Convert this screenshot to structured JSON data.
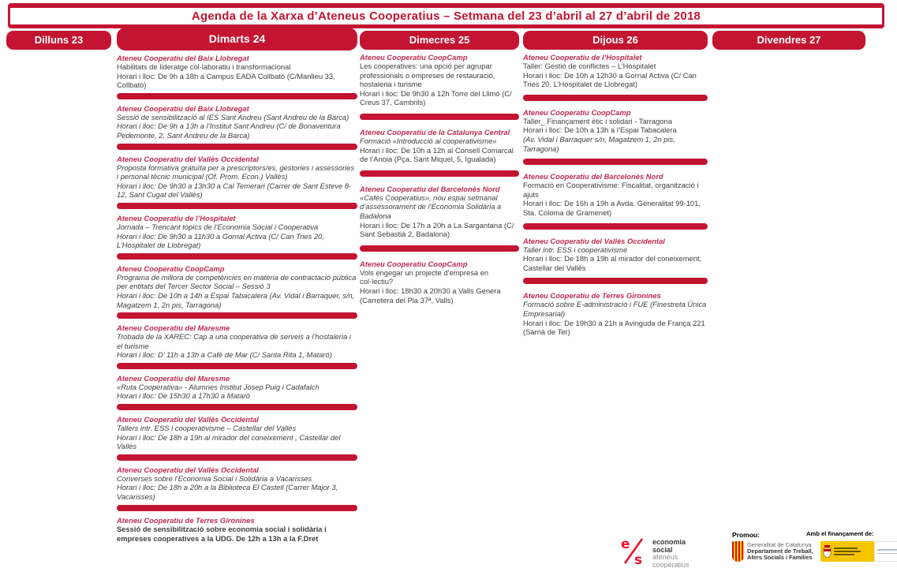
{
  "title": "Agenda de la Xarxa d’Ateneus Cooperatius – Setmana del 23 d’abril al 27 d’abril de 2018",
  "colors": {
    "accent": "#C31432",
    "organizer": "#BE2C55",
    "body_text": "#3E3E3E",
    "spain_yellow": "#F6C500"
  },
  "days": [
    {
      "label": "Dilluns 23",
      "events": []
    },
    {
      "label": "Dimarts  24",
      "events": [
        {
          "org": "Ateneu Cooperatiu del Baix Llobregat",
          "lines": [
            {
              "text": "Habilitats de lideratge col·laboratiu i transformacional",
              "style": "regular"
            },
            {
              "text": "Horari i lloc: De 9h a 18h a Campus EADA Collbató (C/Manlleu 33, Collbató)",
              "style": "regular"
            }
          ]
        },
        {
          "org": "Ateneu Cooperatiu del Baix Llobregat",
          "lines": [
            {
              "text": "Sessió de sensibilització al IES Sant Andreu (Sant Andreu de la Barca)",
              "style": "italic"
            },
            {
              "text": "Horari i lloc: De 9h a 13h a l’Institut Sant Andreu (C/ de Bonaventura Pedemonte, 2, Sant Andreu de la Barca)",
              "style": "italic"
            }
          ]
        },
        {
          "org": "Ateneu Cooperatiu del Vallès Occidental",
          "lines": [
            {
              "text": "Proposta formativa gratuïta per a prescriptors/es, gestories i assessories i personal tècnic municipal (Of. Prom. Econ.) Vallès)",
              "style": "italic"
            },
            {
              "text": "Horari i lloc: De 9h30 a 13h30 a Cal Temerari (Carrer de Sant Esteve 8-12, Sant Cugat del Vallès)",
              "style": "italic"
            }
          ]
        },
        {
          "org": "Ateneu Cooperatiu de l’Hospitalet",
          "lines": [
            {
              "text": "Jornada – Trencant tòpics de l’Economia Social i Cooperativa",
              "style": "italic"
            },
            {
              "text": "Horari i lloc: De 9h30 a 11h30 a Gornal Activa (C/ Can Tries 20, L’Hospitalet de Llobregat)",
              "style": "italic"
            }
          ]
        },
        {
          "org": "Ateneu Cooperatiu CoopCamp",
          "lines": [
            {
              "text": "Programa de millora de competències en matèria de contractació pública per entitats del Tercer Sector Social – Sessió 3",
              "style": "italic"
            },
            {
              "text": "Horari i lloc: De 10h a 14h a Espai Tabacalera (Av. Vidal i Barraquer, s/n, Magatzem  1, 2n pis, Tarragona)",
              "style": "italic"
            }
          ]
        },
        {
          "org": "Ateneu Cooperatiu del Maresme",
          "lines": [
            {
              "text": "Trobada de la XAREC: Cap a una cooperativa de serveis a l’hostaleria i el turisme",
              "style": "italic"
            },
            {
              "text": "Horari i lloc: D’ 11h a 13h a Cafè de Mar (C/ Santa Rita 1, Mataró)",
              "style": "italic"
            }
          ]
        },
        {
          "org": "Ateneu Cooperatiu del Maresme",
          "lines": [
            {
              "text": "«Ruta Cooperativa» - Alumnes Institut Josep Puig i Cadafalch",
              "style": "italic"
            },
            {
              "text": "Horari i lloc: De 15h30 a 17h30 a Mataró",
              "style": "italic"
            }
          ]
        },
        {
          "org": "Ateneu Cooperatiu del Vallès Occidental",
          "lines": [
            {
              "text": "Tallers intr. ESS i cooperativisme – Castellar del Vallès",
              "style": "italic"
            },
            {
              "text": "Horari i lloc: De 18h a 19h al mirador del coneixement , Castellar del Vallès",
              "style": "italic"
            }
          ]
        },
        {
          "org": "Ateneu Cooperatiu del Vallès Occidental",
          "lines": [
            {
              "text": "Converses sobre l’Economia Social i Solidària a Vacarisses",
              "style": "italic"
            },
            {
              "text": "Horari i lloc: De 18h a 20h a la Biblioteca El Castell (Carrer Major 3, Vacarisses)",
              "style": "italic"
            }
          ]
        },
        {
          "org": "Ateneu Cooperatiu de Terres Gironines",
          "lines": [
            {
              "text": "Sessió de sensibilització sobre economia social i solidària i empreses cooperatives a la UDG. De 12h a 13h a la F.Dret",
              "style": "bold"
            }
          ]
        }
      ]
    },
    {
      "label": "Dimecres 25",
      "events": [
        {
          "org": "Ateneu Cooperatiu CoopCamp",
          "lines": [
            {
              "text": "Les cooperatives: una opció per agrupar professionals o empreses de restauració, hostaleria i turisme",
              "style": "regular"
            },
            {
              "text": "Horari i lloc: De 9h30 a 12h Torre del Llimó (C/ Creus 37, Cambrils)",
              "style": "regular"
            }
          ]
        },
        {
          "org": "Ateneu Cooperatiu de la Catalunya Central",
          "lines": [
            {
              "text": "Formació «Introducció al cooperativisme»",
              "style": "italic"
            },
            {
              "text": "Horari i lloc: De 10h a 12h al Consell Comarcal de l’Anoia (Pça. Sant Miquel, 5, Igualada)",
              "style": "regular"
            }
          ]
        },
        {
          "org": "Ateneu Cooperatiu del Barcelonès Nord",
          "lines": [
            {
              "text": "«Cafès Cooperatius», nou espai setmanal d’assessorament de l’Economia Solidària a Badalona",
              "style": "italic"
            },
            {
              "text": "Horari i lloc: De 17h a 20h a La Sargantana (C/ Sant Sebastià 2, Badalona)",
              "style": "regular"
            }
          ]
        },
        {
          "org": "Ateneu Cooperatiu CoopCamp",
          "lines": [
            {
              "text": "Vols engegar un projecte d’empresa en col·lectiu?",
              "style": "regular"
            },
            {
              "text": "Horari i lloc: 18h30 a 20h30 a Valls Genera (Carretera del Pla 37ª, Valls)",
              "style": "regular"
            }
          ]
        }
      ]
    },
    {
      "label": "Dijous 26",
      "events": [
        {
          "org": "Ateneu Cooperatiu de l’Hospitalet",
          "lines": [
            {
              "text": "Taller: Gestió de conflictes – L’Hospitalet",
              "style": "regular"
            },
            {
              "text": "Horari i lloc: De 10h a 12h30 a Gornal Activa (C/ Can Tries 20, L’Hospitalet de Llobregat)",
              "style": "regular"
            }
          ]
        },
        {
          "org": "Ateneu Cooperatiu CoopCamp",
          "lines": [
            {
              "text": "Taller_ Finançament ètic i solidari - Tarragona",
              "style": "regular"
            },
            {
              "text": "Horari i lloc: De 10h a 13h a l’Espai Tabacalera",
              "style": "regular"
            },
            {
              "text": "(Av. Vidal i Barraquer s/n, Magatzem 1, 2n pis, Tarragona)",
              "style": "italic"
            }
          ]
        },
        {
          "org": "Ateneu Cooperatiu del Barcelonès Nord",
          "lines": [
            {
              "text": "Formació en Cooperativisme: Fiscalitat, organització i ajuts",
              "style": "regular"
            },
            {
              "text": "Horari i lloc: De 16h a 19h a Avda. Generalitat 99-101, Sta. Coloma de Gramenet)",
              "style": "regular"
            }
          ]
        },
        {
          "org": "Ateneu Cooperatiu del Vallès Occidental",
          "lines": [
            {
              "text": "Taller intr. ESS i cooperativisme",
              "style": "italic"
            },
            {
              "text": "Horari i lloc: De 18h a 19h al mirador del coneixement, Castellar del Vallès",
              "style": "regular"
            }
          ]
        },
        {
          "org": "Ateneu Cooperatiu de Terres Gironines",
          "lines": [
            {
              "text": "Formació sobre E-administració i FUE (Finestreta Única Empresarial)",
              "style": "italic"
            },
            {
              "text": "Horari i lloc: De 19h30 a 21h a Avinguda de França 221 (Sarrià de Ter)",
              "style": "regular"
            }
          ]
        }
      ]
    },
    {
      "label": "Divendres 27",
      "events": []
    }
  ],
  "footer": {
    "promou_label": "Promou:",
    "financament_label": "Amb el finançament de:",
    "es_logo": {
      "mark": "e/s",
      "line1": "economia",
      "line2": "social",
      "line3": "ateneus",
      "line4": "cooperatius"
    },
    "generalitat_logo": {
      "line1": "Generalitat de Catalunya",
      "line2": "Departament de Treball,",
      "line3": "Afers Socials i Famílies"
    }
  }
}
